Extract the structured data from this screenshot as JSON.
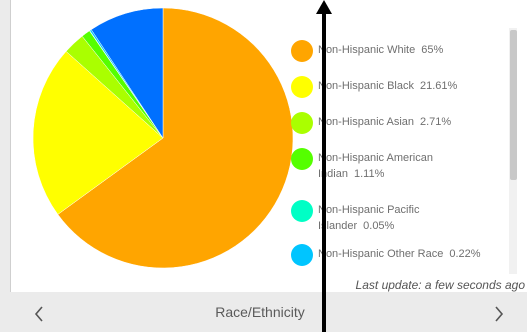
{
  "chart_data": {
    "type": "pie",
    "title": "",
    "slices": [
      {
        "label": "Non-Hispanic White",
        "value": 65,
        "display": "65%",
        "color": "#ffa500"
      },
      {
        "label": "Non-Hispanic Black",
        "value": 21.61,
        "display": "21.61%",
        "color": "#ffff00"
      },
      {
        "label": "Non-Hispanic Asian",
        "value": 2.71,
        "display": "2.71%",
        "color": "#aaff00"
      },
      {
        "label": "Non-Hispanic American Indian",
        "value": 1.11,
        "display": "1.11%",
        "color": "#55ff00"
      },
      {
        "label": "Non-Hispanic Pacific Islander",
        "value": 0.05,
        "display": "0.05%",
        "color": "#00ffc5"
      },
      {
        "label": "Non-Hispanic Other Race",
        "value": 0.22,
        "display": "0.22%",
        "color": "#00c5ff"
      },
      {
        "label": "",
        "value": 9.3,
        "display": "",
        "color": "#0070ff"
      }
    ],
    "legend_placement": "right"
  },
  "legend": {
    "items": [
      {
        "label": "Non-Hispanic White",
        "value": "65%",
        "color": "#ffa500"
      },
      {
        "label": "Non-Hispanic Black",
        "value": "21.61%",
        "color": "#ffff00"
      },
      {
        "label": "Non-Hispanic Asian",
        "value": "2.71%",
        "color": "#aaff00"
      },
      {
        "label": "Non-Hispanic American Indian",
        "value": "1.11%",
        "color": "#55ff00"
      },
      {
        "label": "Non-Hispanic Pacific Islander",
        "value": "0.05%",
        "color": "#00ffc5"
      },
      {
        "label": "Non-Hispanic Other Race",
        "value": "0.22%",
        "color": "#00c5ff"
      }
    ]
  },
  "status": {
    "last_update": "Last update: a few seconds ago"
  },
  "nav": {
    "title": "Race/Ethnicity",
    "prev_icon": "chevron-left-icon",
    "next_icon": "chevron-right-icon"
  }
}
